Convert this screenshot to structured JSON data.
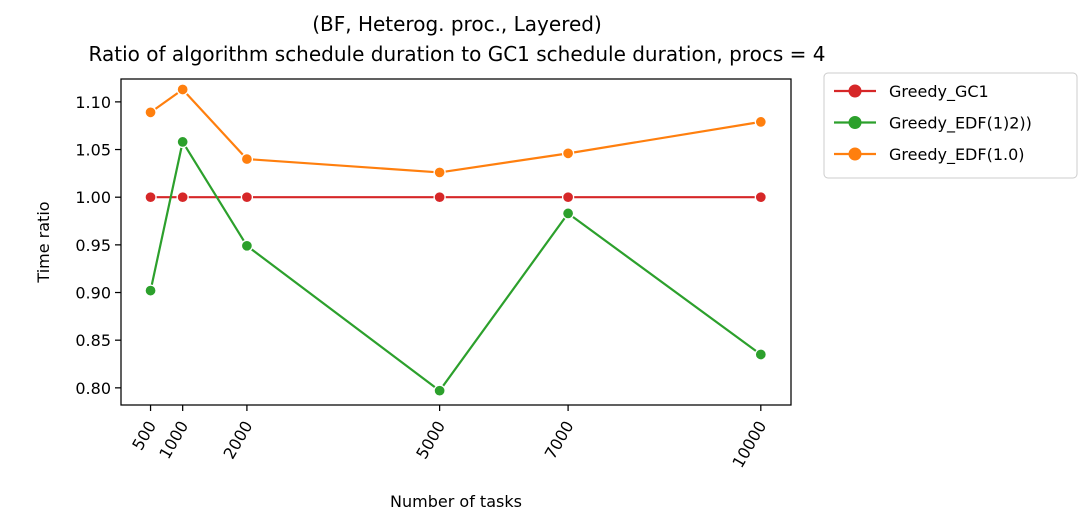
{
  "chart_data": {
    "type": "line",
    "title": [
      "(BF, Heterog. proc., Layered)",
      "Ratio of algorithm schedule duration to GC1 schedule duration, procs = 4"
    ],
    "xlabel": "Number of tasks",
    "ylabel": "Time ratio",
    "x": [
      500,
      1000,
      2000,
      5000,
      7000,
      10000
    ],
    "x_tick_labels": [
      "500",
      "1000",
      "2000",
      "5000",
      "7000",
      "10000"
    ],
    "y_ticks": [
      0.8,
      0.85,
      0.9,
      0.95,
      1.0,
      1.05,
      1.1
    ],
    "y_tick_labels": [
      "0.80",
      "0.85",
      "0.90",
      "0.95",
      "1.00",
      "1.05",
      "1.10"
    ],
    "xlim": [
      40,
      10470
    ],
    "ylim": [
      0.782,
      1.124
    ],
    "grid": false,
    "legend_placement": "outside-upper-right",
    "series": [
      {
        "name": "Greedy_GC1",
        "color": "#d62728",
        "values": [
          1.0,
          1.0,
          1.0,
          1.0,
          1.0,
          1.0
        ]
      },
      {
        "name": "Greedy_EDF(1)2))",
        "color": "#2ca02c",
        "values": [
          0.902,
          1.058,
          0.949,
          0.797,
          0.983,
          0.835
        ]
      },
      {
        "name": "Greedy_EDF(1.0)",
        "color": "#ff7f0e",
        "values": [
          1.089,
          1.113,
          1.04,
          1.026,
          1.046,
          1.079
        ]
      }
    ]
  }
}
